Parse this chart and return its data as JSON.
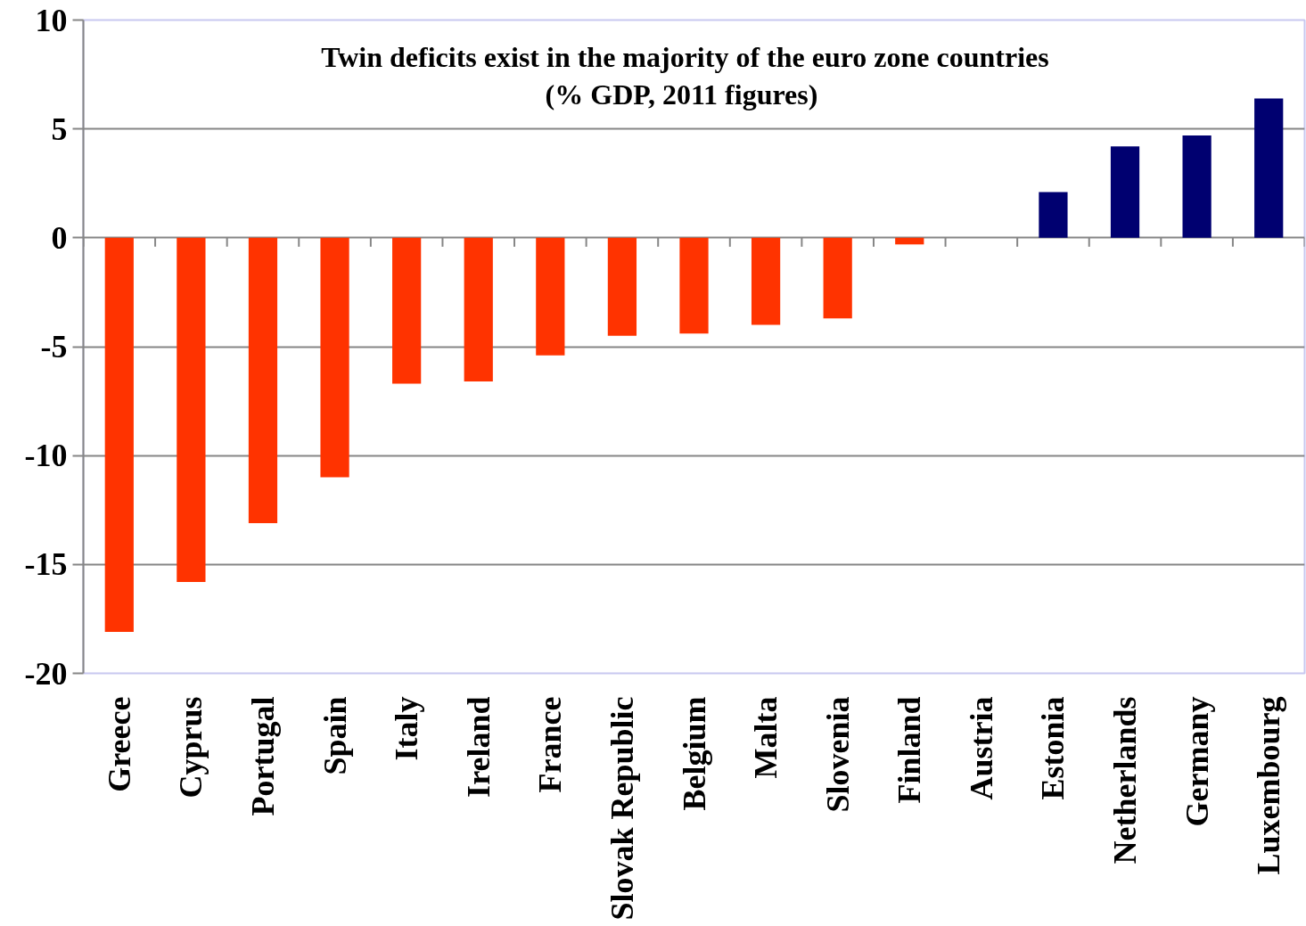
{
  "chart_data": {
    "type": "bar",
    "title": "Twin deficits exist in the majority of the euro zone countries",
    "subtitle": "(% GDP,  2011 figures)",
    "categories": [
      "Greece",
      "Cyprus",
      "Portugal",
      "Spain",
      "Italy",
      "Ireland",
      "France",
      "Slovak Republic",
      "Belgium",
      "Malta",
      "Slovenia",
      "Finland",
      "Austria",
      "Estonia",
      "Netherlands",
      "Germany",
      "Luxembourg"
    ],
    "values": [
      -18.1,
      -15.8,
      -13.1,
      -11.0,
      -6.7,
      -6.6,
      -5.4,
      -4.5,
      -4.4,
      -4.0,
      -3.7,
      -0.3,
      null,
      2.1,
      4.2,
      4.7,
      6.4
    ],
    "colors": [
      "#ff3300",
      "#ff3300",
      "#ff3300",
      "#ff3300",
      "#ff3300",
      "#ff3300",
      "#ff3300",
      "#ff3300",
      "#ff3300",
      "#ff3300",
      "#ff3300",
      "#ff3300",
      null,
      "#000070",
      "#000070",
      "#000070",
      "#000070"
    ],
    "ylim": [
      -20,
      10
    ],
    "yticks": [
      -20,
      -15,
      -10,
      -5,
      0,
      5,
      10
    ],
    "grid": "y"
  }
}
